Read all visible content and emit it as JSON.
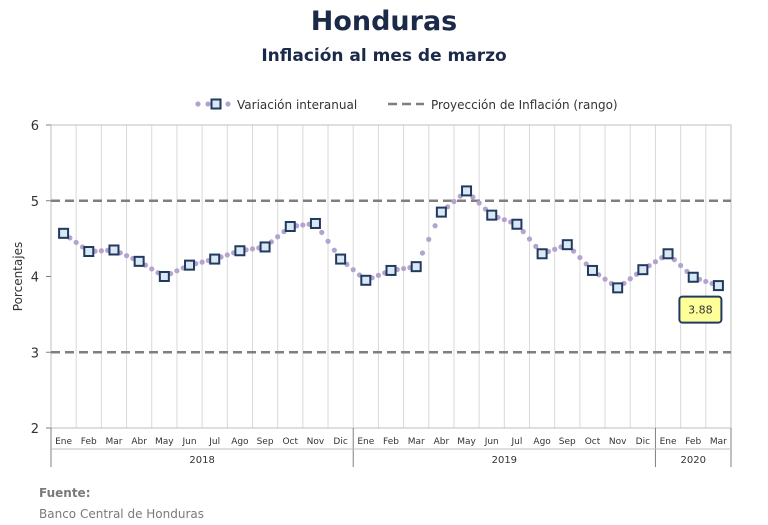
{
  "chart_data": {
    "type": "line",
    "title": "Honduras",
    "subtitle": "Inflación al mes de marzo",
    "ylabel": "Porcentajes",
    "ylim": [
      2,
      6
    ],
    "yticks": [
      "2",
      "3",
      "4",
      "5",
      "6"
    ],
    "legend": {
      "position": "top",
      "entries": [
        "Variación interanual",
        "Proyección de Inflación (rango)"
      ]
    },
    "categories": [
      "Ene",
      "Feb",
      "Mar",
      "Abr",
      "May",
      "Jun",
      "Jul",
      "Ago",
      "Sep",
      "Oct",
      "Nov",
      "Dic",
      "Ene",
      "Feb",
      "Mar",
      "Abr",
      "May",
      "Jun",
      "Jul",
      "Ago",
      "Sep",
      "Oct",
      "Nov",
      "Dic",
      "Ene",
      "Feb",
      "Mar"
    ],
    "years": [
      {
        "label": "2018",
        "months": 12
      },
      {
        "label": "2019",
        "months": 12
      },
      {
        "label": "2020",
        "months": 3
      }
    ],
    "series": [
      {
        "name": "Variación interanual",
        "values": [
          4.57,
          4.33,
          4.35,
          4.2,
          4.0,
          4.15,
          4.23,
          4.34,
          4.39,
          4.66,
          4.7,
          4.23,
          3.95,
          4.08,
          4.13,
          4.85,
          5.13,
          4.81,
          4.69,
          4.3,
          4.42,
          4.08,
          3.85,
          4.09,
          4.3,
          3.99,
          3.88
        ]
      }
    ],
    "range_lines": [
      3,
      5
    ],
    "annotation": {
      "text": "3.88",
      "index": 26
    },
    "colors": {
      "marker_fill": "#dbe8f4",
      "marker_stroke": "#1f3a5f",
      "dots": "#b3a4cf",
      "range_line": "#7f7f7f",
      "callout_fill": "#ffff99",
      "callout_stroke": "#1f3a5f"
    }
  },
  "source": {
    "label": "Fuente:",
    "text": "Banco Central de Honduras"
  }
}
